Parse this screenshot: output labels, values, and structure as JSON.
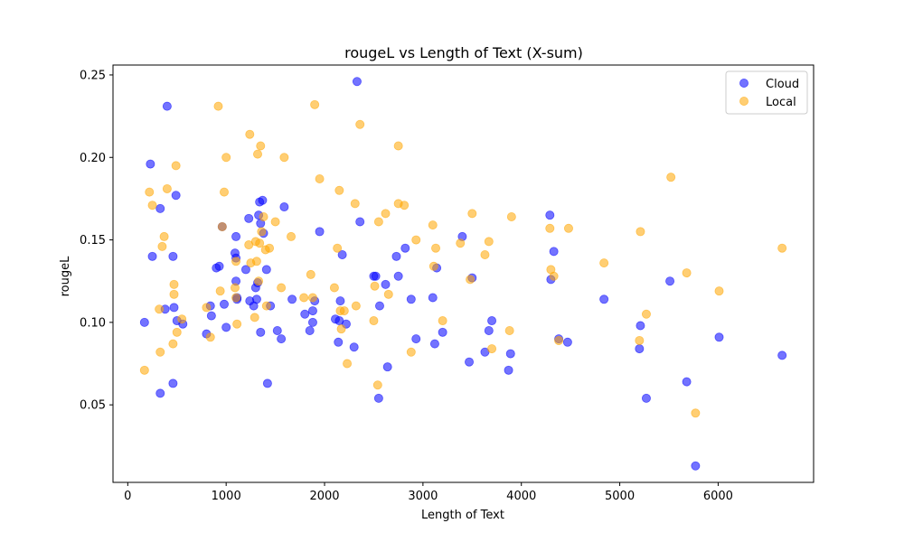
{
  "chart_data": {
    "type": "scatter",
    "title": "rougeL vs Length of Text (X-sum)",
    "xlabel": "Length of Text",
    "ylabel": "rougeL",
    "xlim": [
      -150,
      6970
    ],
    "ylim": [
      0.003,
      0.256
    ],
    "xticks": [
      0,
      1000,
      2000,
      3000,
      4000,
      5000,
      6000
    ],
    "yticks": [
      0.05,
      0.1,
      0.15,
      0.2,
      0.25
    ],
    "ytick_labels": [
      "0.05",
      "0.10",
      "0.15",
      "0.20",
      "0.25"
    ],
    "grid": false,
    "legend_position": "top-right",
    "series": [
      {
        "name": "Cloud",
        "color": "#0000ff",
        "points": [
          [
            170,
            0.1
          ],
          [
            230,
            0.196
          ],
          [
            250,
            0.14
          ],
          [
            330,
            0.169
          ],
          [
            330,
            0.057
          ],
          [
            380,
            0.108
          ],
          [
            400,
            0.231
          ],
          [
            460,
            0.14
          ],
          [
            460,
            0.063
          ],
          [
            470,
            0.109
          ],
          [
            490,
            0.177
          ],
          [
            500,
            0.101
          ],
          [
            560,
            0.099
          ],
          [
            800,
            0.093
          ],
          [
            840,
            0.11
          ],
          [
            850,
            0.104
          ],
          [
            900,
            0.133
          ],
          [
            930,
            0.134
          ],
          [
            960,
            0.158
          ],
          [
            980,
            0.111
          ],
          [
            1000,
            0.097
          ],
          [
            1090,
            0.142
          ],
          [
            1100,
            0.152
          ],
          [
            1100,
            0.125
          ],
          [
            1100,
            0.139
          ],
          [
            1110,
            0.115
          ],
          [
            1110,
            0.114
          ],
          [
            1200,
            0.132
          ],
          [
            1230,
            0.163
          ],
          [
            1240,
            0.113
          ],
          [
            1280,
            0.11
          ],
          [
            1300,
            0.121
          ],
          [
            1310,
            0.114
          ],
          [
            1320,
            0.124
          ],
          [
            1330,
            0.165
          ],
          [
            1340,
            0.173
          ],
          [
            1350,
            0.094
          ],
          [
            1350,
            0.16
          ],
          [
            1370,
            0.174
          ],
          [
            1380,
            0.154
          ],
          [
            1410,
            0.132
          ],
          [
            1420,
            0.063
          ],
          [
            1450,
            0.11
          ],
          [
            1520,
            0.095
          ],
          [
            1560,
            0.09
          ],
          [
            1590,
            0.17
          ],
          [
            1670,
            0.114
          ],
          [
            1800,
            0.105
          ],
          [
            1850,
            0.095
          ],
          [
            1880,
            0.1
          ],
          [
            1880,
            0.107
          ],
          [
            1900,
            0.113
          ],
          [
            1950,
            0.155
          ],
          [
            2110,
            0.102
          ],
          [
            2140,
            0.088
          ],
          [
            2150,
            0.101
          ],
          [
            2160,
            0.113
          ],
          [
            2180,
            0.141
          ],
          [
            2220,
            0.099
          ],
          [
            2300,
            0.085
          ],
          [
            2330,
            0.246
          ],
          [
            2360,
            0.161
          ],
          [
            2500,
            0.128
          ],
          [
            2520,
            0.128
          ],
          [
            2550,
            0.054
          ],
          [
            2560,
            0.11
          ],
          [
            2620,
            0.123
          ],
          [
            2640,
            0.073
          ],
          [
            2730,
            0.14
          ],
          [
            2750,
            0.128
          ],
          [
            2820,
            0.145
          ],
          [
            2880,
            0.114
          ],
          [
            2930,
            0.09
          ],
          [
            3100,
            0.115
          ],
          [
            3120,
            0.087
          ],
          [
            3140,
            0.133
          ],
          [
            3200,
            0.094
          ],
          [
            3400,
            0.152
          ],
          [
            3470,
            0.076
          ],
          [
            3500,
            0.127
          ],
          [
            3630,
            0.082
          ],
          [
            3670,
            0.095
          ],
          [
            3700,
            0.101
          ],
          [
            3870,
            0.071
          ],
          [
            3890,
            0.081
          ],
          [
            4290,
            0.165
          ],
          [
            4300,
            0.126
          ],
          [
            4330,
            0.143
          ],
          [
            4380,
            0.09
          ],
          [
            4470,
            0.088
          ],
          [
            4840,
            0.114
          ],
          [
            5200,
            0.084
          ],
          [
            5210,
            0.098
          ],
          [
            5270,
            0.054
          ],
          [
            5510,
            0.125
          ],
          [
            5680,
            0.064
          ],
          [
            5770,
            0.013
          ],
          [
            6010,
            0.091
          ],
          [
            6650,
            0.08
          ]
        ]
      },
      {
        "name": "Local",
        "color": "#ffa500",
        "points": [
          [
            170,
            0.071
          ],
          [
            220,
            0.179
          ],
          [
            250,
            0.171
          ],
          [
            320,
            0.108
          ],
          [
            330,
            0.082
          ],
          [
            350,
            0.146
          ],
          [
            370,
            0.152
          ],
          [
            400,
            0.181
          ],
          [
            460,
            0.087
          ],
          [
            470,
            0.123
          ],
          [
            470,
            0.117
          ],
          [
            490,
            0.195
          ],
          [
            500,
            0.094
          ],
          [
            550,
            0.102
          ],
          [
            800,
            0.109
          ],
          [
            840,
            0.091
          ],
          [
            920,
            0.231
          ],
          [
            940,
            0.119
          ],
          [
            960,
            0.158
          ],
          [
            980,
            0.179
          ],
          [
            1000,
            0.2
          ],
          [
            1090,
            0.121
          ],
          [
            1100,
            0.137
          ],
          [
            1100,
            0.115
          ],
          [
            1110,
            0.099
          ],
          [
            1230,
            0.147
          ],
          [
            1240,
            0.214
          ],
          [
            1250,
            0.136
          ],
          [
            1290,
            0.103
          ],
          [
            1300,
            0.149
          ],
          [
            1310,
            0.137
          ],
          [
            1320,
            0.202
          ],
          [
            1330,
            0.125
          ],
          [
            1340,
            0.148
          ],
          [
            1350,
            0.207
          ],
          [
            1360,
            0.155
          ],
          [
            1380,
            0.164
          ],
          [
            1400,
            0.144
          ],
          [
            1410,
            0.11
          ],
          [
            1440,
            0.145
          ],
          [
            1500,
            0.161
          ],
          [
            1560,
            0.121
          ],
          [
            1590,
            0.2
          ],
          [
            1660,
            0.152
          ],
          [
            1790,
            0.115
          ],
          [
            1860,
            0.129
          ],
          [
            1880,
            0.115
          ],
          [
            1900,
            0.232
          ],
          [
            1950,
            0.187
          ],
          [
            2100,
            0.121
          ],
          [
            2130,
            0.145
          ],
          [
            2150,
            0.18
          ],
          [
            2160,
            0.107
          ],
          [
            2170,
            0.096
          ],
          [
            2200,
            0.107
          ],
          [
            2230,
            0.075
          ],
          [
            2310,
            0.172
          ],
          [
            2320,
            0.11
          ],
          [
            2360,
            0.22
          ],
          [
            2500,
            0.101
          ],
          [
            2510,
            0.122
          ],
          [
            2540,
            0.062
          ],
          [
            2550,
            0.161
          ],
          [
            2620,
            0.166
          ],
          [
            2650,
            0.117
          ],
          [
            2750,
            0.172
          ],
          [
            2750,
            0.207
          ],
          [
            2810,
            0.171
          ],
          [
            2880,
            0.082
          ],
          [
            2930,
            0.15
          ],
          [
            3100,
            0.159
          ],
          [
            3110,
            0.134
          ],
          [
            3130,
            0.145
          ],
          [
            3200,
            0.101
          ],
          [
            3380,
            0.148
          ],
          [
            3480,
            0.126
          ],
          [
            3500,
            0.166
          ],
          [
            3630,
            0.141
          ],
          [
            3670,
            0.149
          ],
          [
            3700,
            0.084
          ],
          [
            3880,
            0.095
          ],
          [
            3900,
            0.164
          ],
          [
            4290,
            0.157
          ],
          [
            4300,
            0.132
          ],
          [
            4330,
            0.128
          ],
          [
            4380,
            0.089
          ],
          [
            4480,
            0.157
          ],
          [
            4840,
            0.136
          ],
          [
            5200,
            0.089
          ],
          [
            5210,
            0.155
          ],
          [
            5270,
            0.105
          ],
          [
            5520,
            0.188
          ],
          [
            5680,
            0.13
          ],
          [
            5770,
            0.045
          ],
          [
            6010,
            0.119
          ],
          [
            6650,
            0.145
          ]
        ]
      }
    ]
  }
}
